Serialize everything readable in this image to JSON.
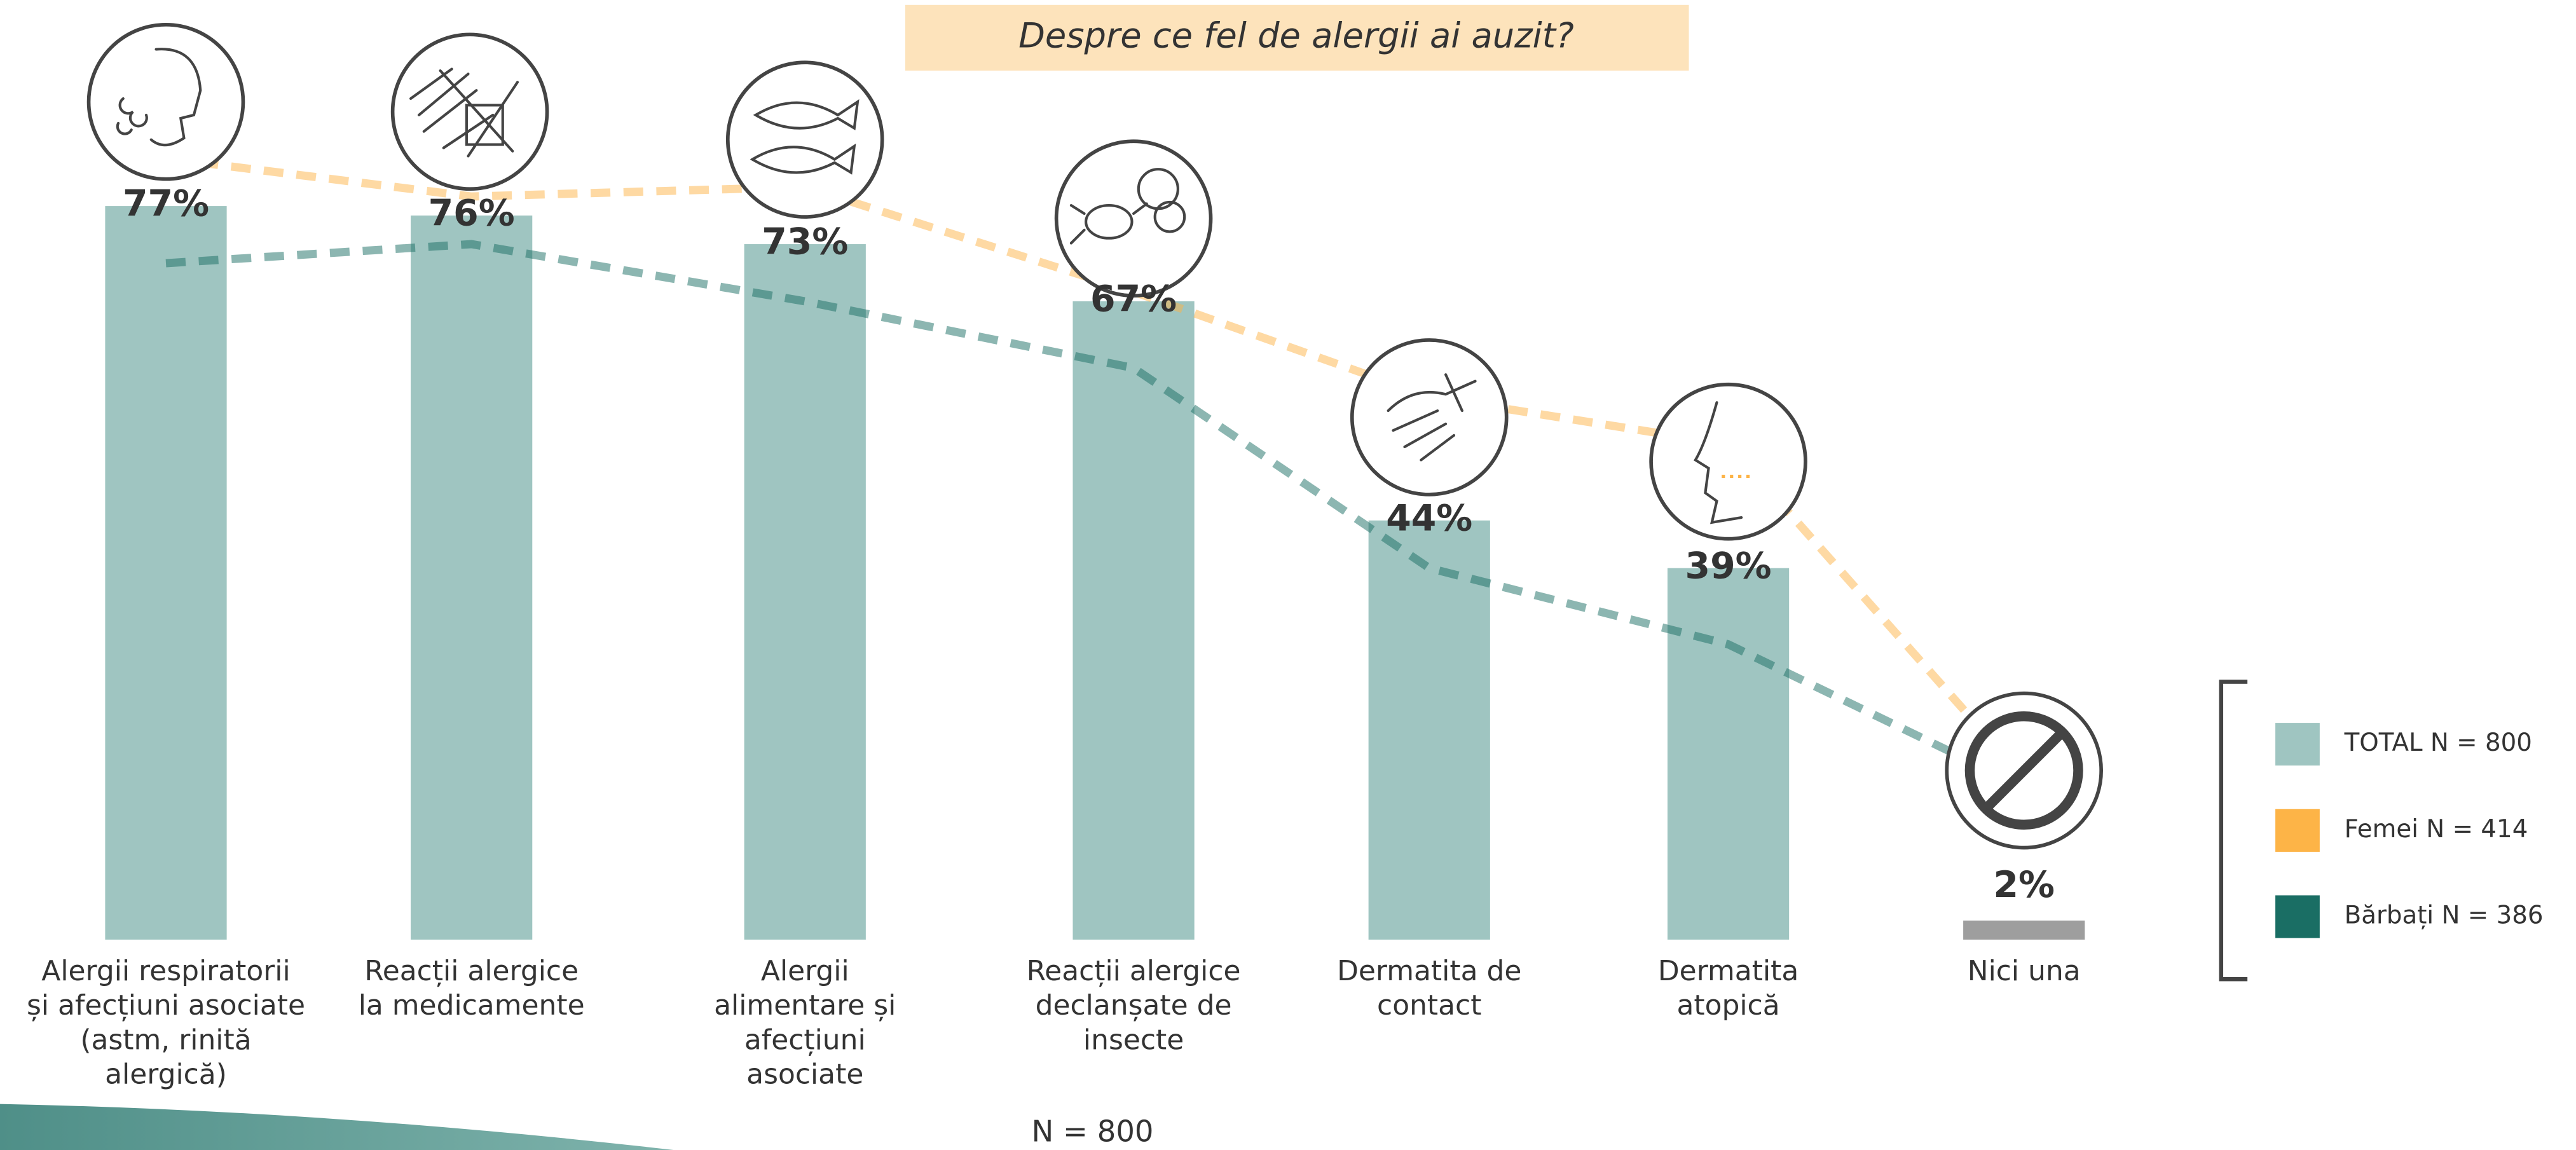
{
  "chart_data": {
    "type": "bar",
    "title": "Despre ce fel de alergii ai auzit?",
    "footnote": "N = 800",
    "categories": [
      "Alergii respiratorii\nși afecțiuni asociate\n(astm, rinită\nalergică)",
      "Reacții alergice\nla medicamente",
      "Alergii\nalimentare și\nafecțiuni\nasociate",
      "Reacții alergice\ndeclanșate de\ninsecte",
      "Dermatita de\ncontact",
      "Dermatita\natopică",
      "Nici una"
    ],
    "ylim": [
      0,
      100
    ],
    "series": [
      {
        "name": "TOTAL N = 800",
        "type": "bar",
        "color": "#9fc5c1",
        "colors": [
          "#9fc5c1",
          "#9fc5c1",
          "#9fc5c1",
          "#9fc5c1",
          "#9fc5c1",
          "#9fc5c1",
          "#9e9e9e"
        ],
        "values": [
          77,
          76,
          73,
          67,
          44,
          39,
          2
        ],
        "value_labels": [
          "77%",
          "76%",
          "73%",
          "67%",
          "44%",
          "39%",
          "2%"
        ]
      },
      {
        "name": "Femei N = 414",
        "type": "line",
        "color": "#fdb447",
        "values": [
          82,
          78,
          79,
          68,
          57,
          52,
          17
        ]
      },
      {
        "name": "Bărbați N = 386",
        "type": "line",
        "color": "#1a6e64",
        "values": [
          71,
          73,
          67,
          60,
          39,
          31,
          16
        ]
      }
    ],
    "legend": "right"
  }
}
